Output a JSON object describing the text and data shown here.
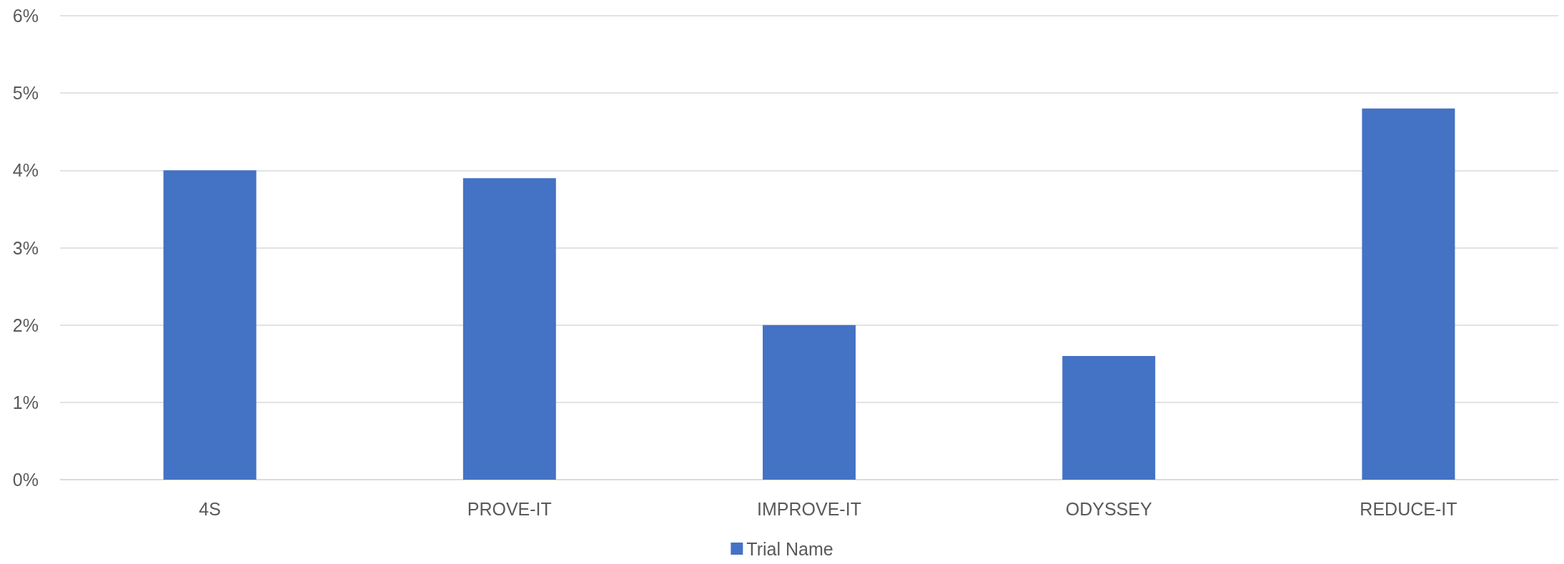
{
  "chart_data": {
    "type": "bar",
    "categories": [
      "4S",
      "PROVE-IT",
      "IMPROVE-IT",
      "ODYSSEY",
      "REDUCE-IT"
    ],
    "series": [
      {
        "name": "Trial Name",
        "color": "#4472c4",
        "values": [
          4.0,
          3.9,
          2.0,
          1.6,
          4.8
        ]
      }
    ],
    "ylim": [
      0,
      6
    ],
    "yticks": [
      {
        "value": 0,
        "label": "0%"
      },
      {
        "value": 1,
        "label": "1%"
      },
      {
        "value": 2,
        "label": "2%"
      },
      {
        "value": 3,
        "label": "3%"
      },
      {
        "value": 4,
        "label": "4%"
      },
      {
        "value": 5,
        "label": "5%"
      },
      {
        "value": 6,
        "label": "6%"
      }
    ],
    "grid": "y",
    "legend": "bottom"
  }
}
